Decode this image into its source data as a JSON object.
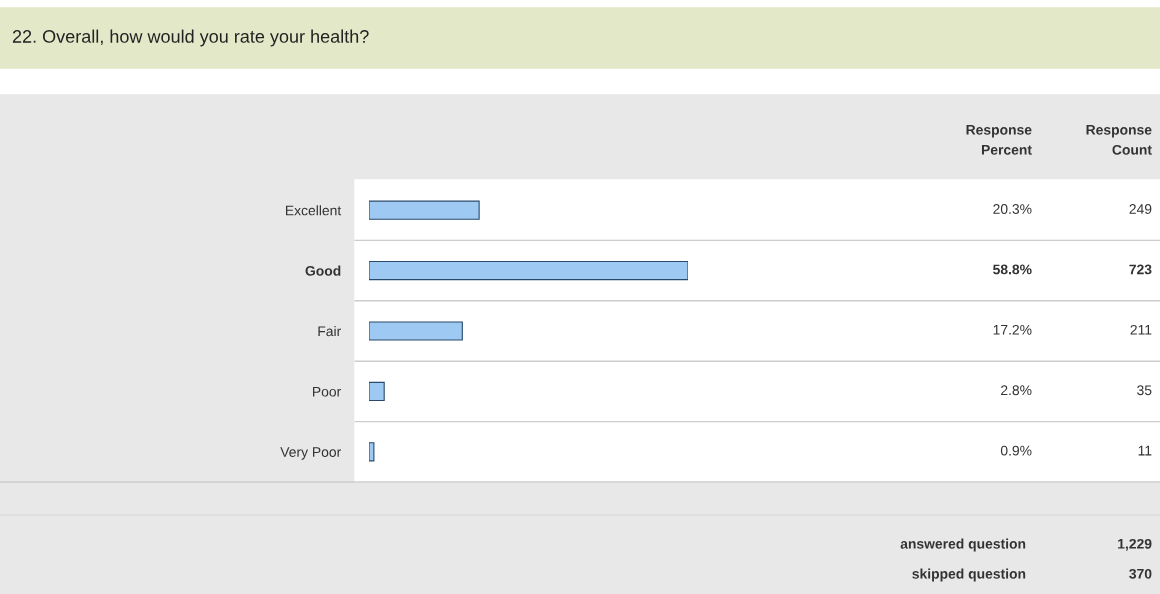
{
  "chart_data": {
    "type": "bar",
    "orientation": "horizontal",
    "title": "22. Overall, how would you rate your health?",
    "categories": [
      "Excellent",
      "Good",
      "Fair",
      "Poor",
      "Very Poor"
    ],
    "values": [
      20.3,
      58.8,
      17.2,
      2.8,
      0.9
    ],
    "value_labels": [
      "20.3%",
      "58.8%",
      "17.2%",
      "2.8%",
      "0.9%"
    ],
    "color": "#9ec9f2",
    "tick_labels": "y",
    "annotations": [
      "Response\nPercent",
      "Response\nCount",
      "249",
      "723",
      "211",
      "35",
      "11",
      "answered question",
      "1,229",
      "skipped question",
      "370"
    ]
  }
}
